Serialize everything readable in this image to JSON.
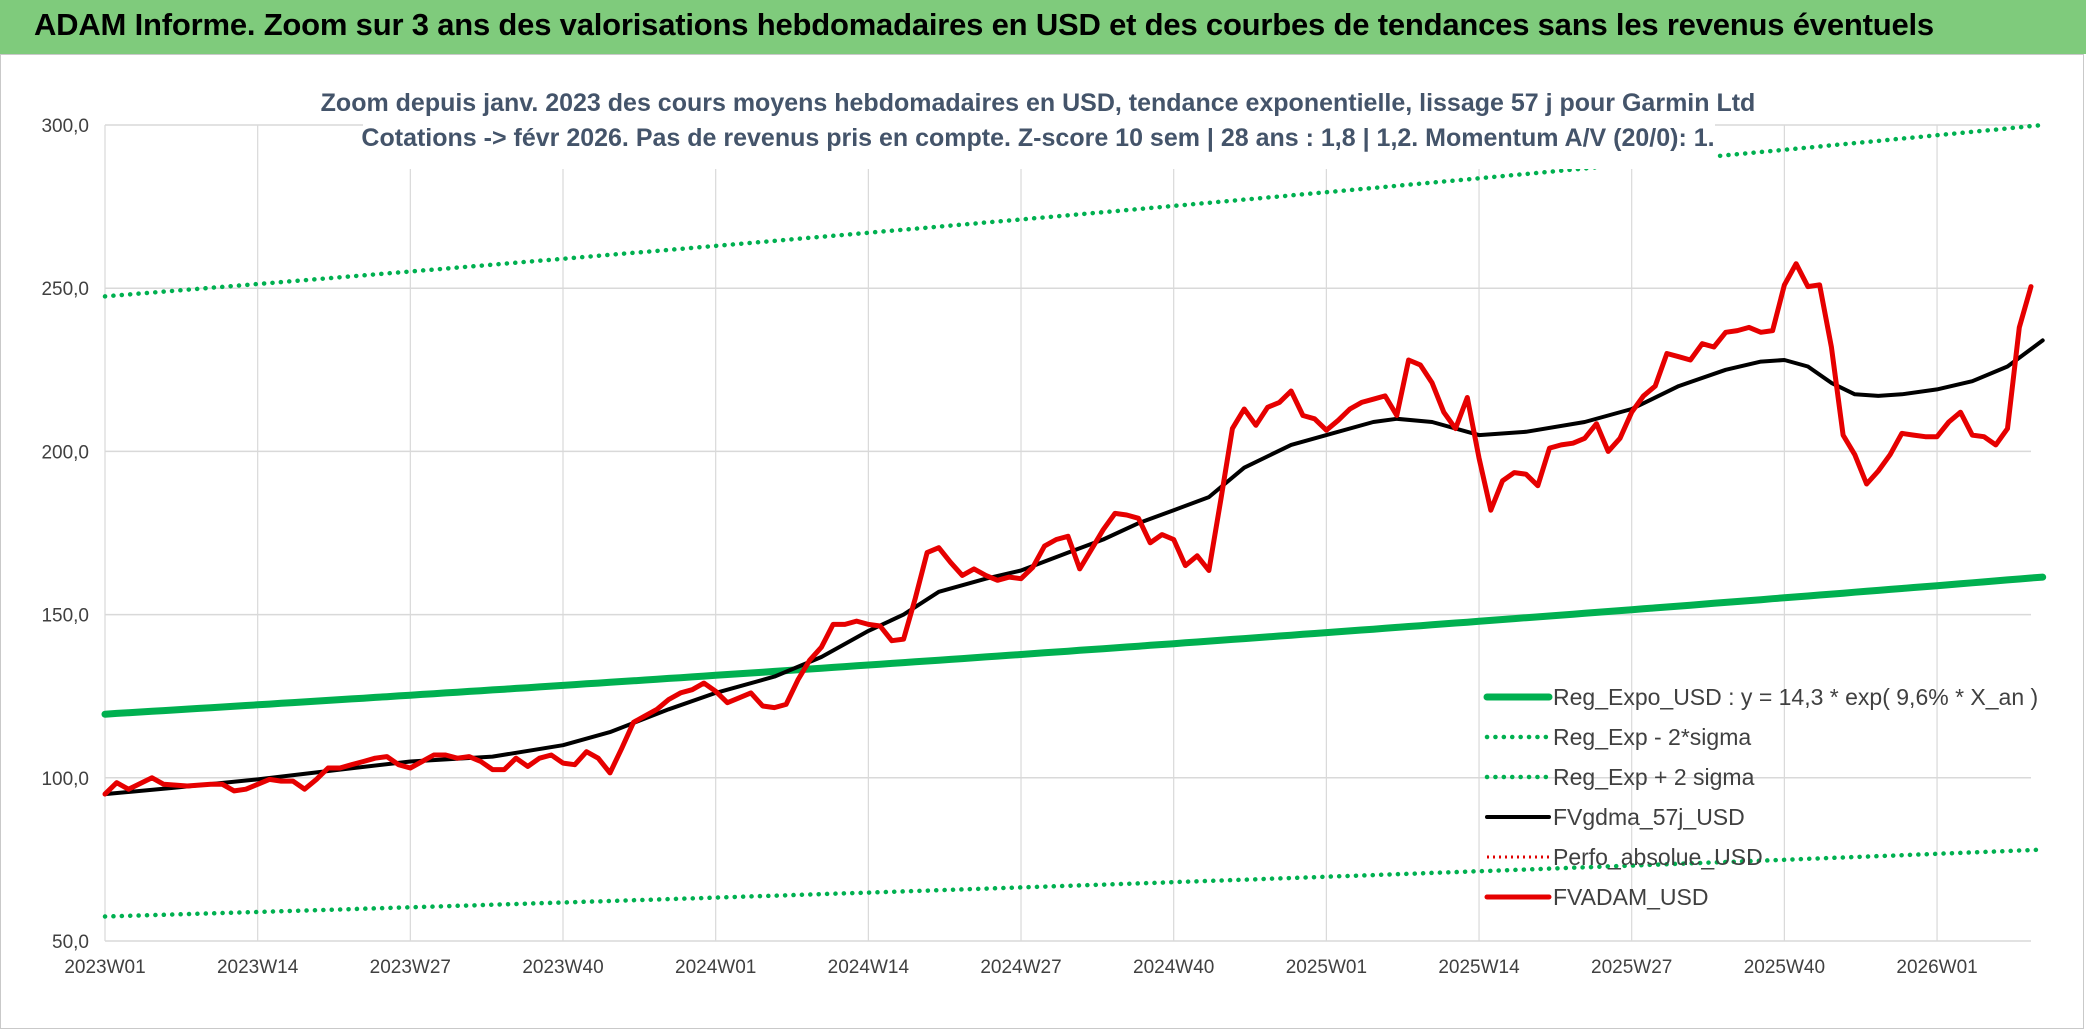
{
  "header": {
    "title": "ADAM Informe. Zoom sur 3 ans des valorisations hebdomadaires en USD et des courbes de tendances sans les revenus éventuels"
  },
  "colors": {
    "header_bg": "#7fcb7c",
    "reg_expo": "#00b050",
    "sigma": "#00b050",
    "fvgdma": "#000000",
    "perfo": "#e00000",
    "fvadam": "#e60000",
    "grid": "#d9d9d9",
    "axis_text": "#404040",
    "subtitle_text": "#44546a"
  },
  "chart_data": {
    "type": "line",
    "title": "Zoom depuis janv. 2023 des cours moyens hebdomadaires en USD, tendance exponentielle, lissage 57 j pour Garmin Ltd",
    "subtitle": "Cotations -> févr 2026. Pas de revenus pris en compte. Z-score 10 sem | 28 ans : 1,8 | 1,2. Momentum A/V (20/0): 1.",
    "xlabel": "",
    "ylabel": "",
    "ylim": [
      50,
      300
    ],
    "y_ticks": [
      "50,0",
      "100,0",
      "150,0",
      "200,0",
      "250,0",
      "300,0"
    ],
    "x_count": 165,
    "x_ticks": [
      {
        "i": 0,
        "label": "2023W01"
      },
      {
        "i": 13,
        "label": "2023W14"
      },
      {
        "i": 26,
        "label": "2023W27"
      },
      {
        "i": 39,
        "label": "2023W40"
      },
      {
        "i": 52,
        "label": "2024W01"
      },
      {
        "i": 65,
        "label": "2024W14"
      },
      {
        "i": 78,
        "label": "2024W27"
      },
      {
        "i": 91,
        "label": "2024W40"
      },
      {
        "i": 104,
        "label": "2025W01"
      },
      {
        "i": 117,
        "label": "2025W14"
      },
      {
        "i": 130,
        "label": "2025W27"
      },
      {
        "i": 143,
        "label": "2025W40"
      },
      {
        "i": 156,
        "label": "2026W01"
      }
    ],
    "grid": true,
    "legend_position": "bottom-right",
    "series": [
      {
        "name": "Reg_Expo_USD : y = 14,3 * exp( 9,6% *  X_an )",
        "style": "solid-thick",
        "points": [
          [
            0,
            119.5
          ],
          [
            165,
            161.5
          ]
        ]
      },
      {
        "name": "Reg_Exp - 2*sigma",
        "style": "dotted",
        "points": [
          [
            0,
            57.5
          ],
          [
            165,
            78
          ]
        ]
      },
      {
        "name": "Reg_Exp + 2 sigma",
        "style": "dotted",
        "points": [
          [
            0,
            247.5
          ],
          [
            165,
            300
          ]
        ]
      },
      {
        "name": "FVgdma_57j_USD",
        "style": "solid",
        "points": [
          [
            0,
            95
          ],
          [
            6,
            97
          ],
          [
            13,
            99.5
          ],
          [
            20,
            102.5
          ],
          [
            26,
            105
          ],
          [
            33,
            106.5
          ],
          [
            39,
            110
          ],
          [
            43,
            114
          ],
          [
            48,
            121
          ],
          [
            52,
            126
          ],
          [
            57,
            131
          ],
          [
            61,
            137
          ],
          [
            65,
            145
          ],
          [
            68,
            150
          ],
          [
            71,
            157
          ],
          [
            75,
            161
          ],
          [
            78,
            163.5
          ],
          [
            82,
            169
          ],
          [
            85,
            173
          ],
          [
            88,
            178
          ],
          [
            91,
            182
          ],
          [
            94,
            186
          ],
          [
            97,
            195
          ],
          [
            101,
            202
          ],
          [
            104,
            205
          ],
          [
            108,
            209
          ],
          [
            110,
            210
          ],
          [
            113,
            209
          ],
          [
            117,
            205
          ],
          [
            121,
            206
          ],
          [
            126,
            209
          ],
          [
            130,
            213
          ],
          [
            134,
            220
          ],
          [
            138,
            225
          ],
          [
            141,
            227.5
          ],
          [
            143,
            228
          ],
          [
            145,
            226
          ],
          [
            147,
            221
          ],
          [
            149,
            217.5
          ],
          [
            151,
            217
          ],
          [
            153,
            217.5
          ],
          [
            156,
            219
          ],
          [
            159,
            221.5
          ],
          [
            162,
            226
          ],
          [
            165,
            234
          ]
        ]
      },
      {
        "name": "Perfo_absolue_USD",
        "style": "dotted-red",
        "points": []
      },
      {
        "name": "FVADAM_USD",
        "style": "solid-thick",
        "points": [
          [
            0,
            95
          ],
          [
            1,
            98.5
          ],
          [
            2,
            96.5
          ],
          [
            4,
            100
          ],
          [
            5,
            98
          ],
          [
            7,
            97.5
          ],
          [
            9,
            98
          ],
          [
            10,
            98
          ],
          [
            11,
            96
          ],
          [
            12,
            96.5
          ],
          [
            13,
            98
          ],
          [
            14,
            99.5
          ],
          [
            15,
            99
          ],
          [
            16,
            99
          ],
          [
            17,
            96.5
          ],
          [
            18,
            99.5
          ],
          [
            19,
            103
          ],
          [
            20,
            103
          ],
          [
            21,
            104
          ],
          [
            22,
            105
          ],
          [
            23,
            106
          ],
          [
            24,
            106.5
          ],
          [
            25,
            104
          ],
          [
            26,
            103
          ],
          [
            27,
            105
          ],
          [
            28,
            107
          ],
          [
            29,
            107
          ],
          [
            30,
            106
          ],
          [
            31,
            106.5
          ],
          [
            32,
            105
          ],
          [
            33,
            102.5
          ],
          [
            34,
            102.5
          ],
          [
            35,
            106
          ],
          [
            36,
            103.5
          ],
          [
            37,
            106
          ],
          [
            38,
            107
          ],
          [
            39,
            104.5
          ],
          [
            40,
            104
          ],
          [
            41,
            108
          ],
          [
            42,
            106
          ],
          [
            43,
            101.5
          ],
          [
            44,
            109
          ],
          [
            45,
            117
          ],
          [
            46,
            119
          ],
          [
            47,
            121
          ],
          [
            48,
            124
          ],
          [
            49,
            126
          ],
          [
            50,
            127
          ],
          [
            51,
            129
          ],
          [
            52,
            126.5
          ],
          [
            53,
            123
          ],
          [
            54,
            124.5
          ],
          [
            55,
            126
          ],
          [
            56,
            122
          ],
          [
            57,
            121.5
          ],
          [
            58,
            122.5
          ],
          [
            59,
            130
          ],
          [
            60,
            136
          ],
          [
            61,
            140
          ],
          [
            62,
            147
          ],
          [
            63,
            147
          ],
          [
            64,
            148
          ],
          [
            65,
            147
          ],
          [
            66,
            146.5
          ],
          [
            67,
            142
          ],
          [
            68,
            142.5
          ],
          [
            69,
            155
          ],
          [
            70,
            169
          ],
          [
            71,
            170.5
          ],
          [
            72,
            166
          ],
          [
            73,
            162
          ],
          [
            74,
            164
          ],
          [
            75,
            162
          ],
          [
            76,
            160.5
          ],
          [
            77,
            161.5
          ],
          [
            78,
            161
          ],
          [
            79,
            164.5
          ],
          [
            80,
            171
          ],
          [
            81,
            173
          ],
          [
            82,
            174
          ],
          [
            83,
            164
          ],
          [
            84,
            170
          ],
          [
            85,
            176
          ],
          [
            86,
            181
          ],
          [
            87,
            180.5
          ],
          [
            88,
            179.5
          ],
          [
            89,
            172
          ],
          [
            90,
            174.5
          ],
          [
            91,
            173
          ],
          [
            92,
            165
          ],
          [
            93,
            168
          ],
          [
            94,
            163.5
          ],
          [
            95,
            185
          ],
          [
            96,
            207
          ],
          [
            97,
            213
          ],
          [
            98,
            208
          ],
          [
            99,
            213.5
          ],
          [
            100,
            215
          ],
          [
            101,
            218.5
          ],
          [
            102,
            211
          ],
          [
            103,
            210
          ],
          [
            104,
            206.5
          ],
          [
            105,
            209.5
          ],
          [
            106,
            213
          ],
          [
            107,
            215
          ],
          [
            108,
            216
          ],
          [
            109,
            217
          ],
          [
            110,
            211
          ],
          [
            111,
            228
          ],
          [
            112,
            226.5
          ],
          [
            113,
            221
          ],
          [
            114,
            212
          ],
          [
            115,
            207
          ],
          [
            116,
            216.5
          ],
          [
            117,
            198
          ],
          [
            118,
            182
          ],
          [
            119,
            191
          ],
          [
            120,
            193.5
          ],
          [
            121,
            193
          ],
          [
            122,
            189.5
          ],
          [
            123,
            201
          ],
          [
            124,
            202
          ],
          [
            125,
            202.5
          ],
          [
            126,
            204
          ],
          [
            127,
            208.5
          ],
          [
            128,
            200
          ],
          [
            129,
            204
          ],
          [
            130,
            212
          ],
          [
            131,
            217
          ],
          [
            132,
            220
          ],
          [
            133,
            230
          ],
          [
            134,
            229
          ],
          [
            135,
            228
          ],
          [
            136,
            233
          ],
          [
            137,
            232
          ],
          [
            138,
            236.5
          ],
          [
            139,
            237
          ],
          [
            140,
            238
          ],
          [
            141,
            236.5
          ],
          [
            142,
            237
          ],
          [
            143,
            251
          ],
          [
            144,
            257.5
          ],
          [
            145,
            250.5
          ],
          [
            146,
            251
          ],
          [
            147,
            232
          ],
          [
            148,
            205
          ],
          [
            149,
            199
          ],
          [
            150,
            190
          ],
          [
            151,
            194
          ],
          [
            152,
            199
          ],
          [
            153,
            205.5
          ],
          [
            154,
            205
          ],
          [
            155,
            204.5
          ],
          [
            156,
            204.5
          ],
          [
            157,
            209
          ],
          [
            158,
            212
          ],
          [
            159,
            205
          ],
          [
            160,
            204.5
          ],
          [
            161,
            202
          ],
          [
            162,
            207
          ],
          [
            163,
            238
          ],
          [
            164,
            250.5
          ]
        ]
      }
    ]
  }
}
